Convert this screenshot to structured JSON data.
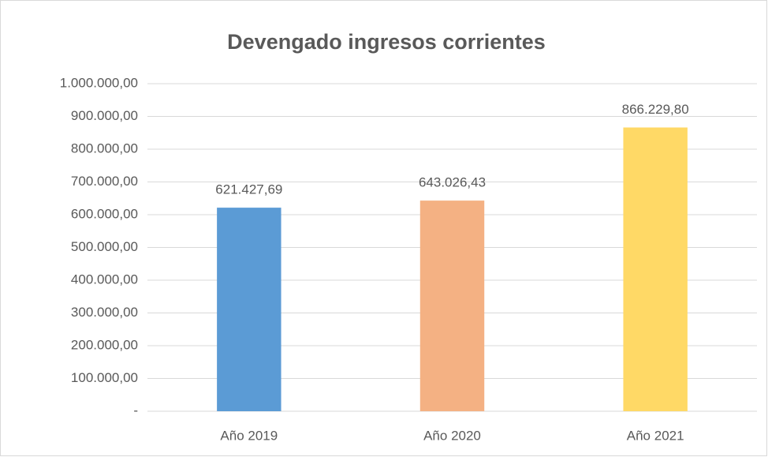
{
  "chart_data": {
    "type": "bar",
    "title": "Devengado ingresos corrientes",
    "categories": [
      "Año 2019",
      "Año 2020",
      "Año 2021"
    ],
    "values": [
      621427.69,
      643026.43,
      866229.8
    ],
    "value_labels": [
      "621.427,69",
      "643.026,43",
      "866.229,80"
    ],
    "colors": [
      "#5b9bd5",
      "#f4b183",
      "#ffd966"
    ],
    "ylim": [
      0,
      1000000
    ],
    "yticks": [
      {
        "value": 0,
        "label": "-"
      },
      {
        "value": 100000,
        "label": "100.000,00"
      },
      {
        "value": 200000,
        "label": "200.000,00"
      },
      {
        "value": 300000,
        "label": "300.000,00"
      },
      {
        "value": 400000,
        "label": "400.000,00"
      },
      {
        "value": 500000,
        "label": "500.000,00"
      },
      {
        "value": 600000,
        "label": "600.000,00"
      },
      {
        "value": 700000,
        "label": "700.000,00"
      },
      {
        "value": 800000,
        "label": "800.000,00"
      },
      {
        "value": 900000,
        "label": "900.000,00"
      },
      {
        "value": 1000000,
        "label": "1.000.000,00"
      }
    ],
    "grid": true
  }
}
